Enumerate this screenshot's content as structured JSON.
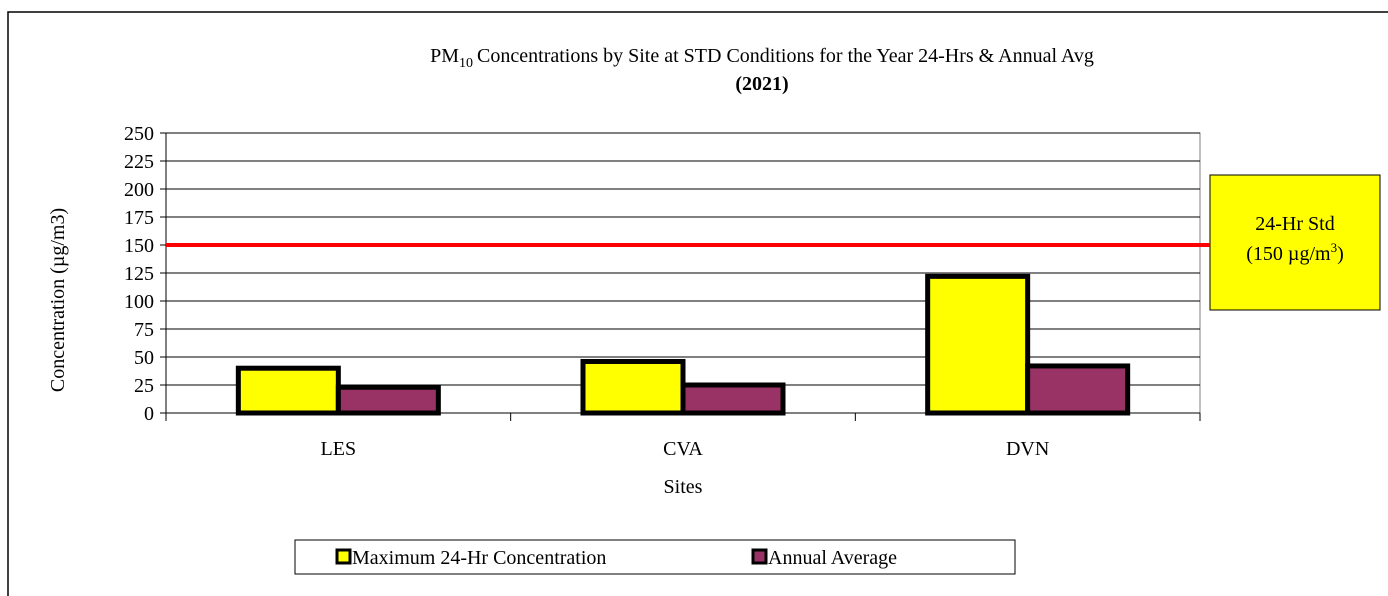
{
  "chart_data": {
    "type": "bar",
    "title_prefix": "PM",
    "title_subscript": "10",
    "title": "Concentrations by Site at STD Conditions for the Year 24-Hrs & Annual Avg",
    "subtitle": "(2021)",
    "x_label": "Sites",
    "y_label": "Concentration (µg/m3)",
    "categories": [
      "LES",
      "CVA",
      "DVN"
    ],
    "series": [
      {
        "name": "Maximum 24-Hr Concentration",
        "color": "#ffff00",
        "values": [
          40,
          46,
          122
        ]
      },
      {
        "name": "Annual Average",
        "color": "#993366",
        "values": [
          23,
          25,
          42
        ]
      }
    ],
    "ylim": [
      0,
      250
    ],
    "yticks": [
      0,
      25,
      50,
      75,
      100,
      125,
      150,
      175,
      200,
      225,
      250
    ],
    "grid": true,
    "reference_line": {
      "value": 150,
      "color": "#ff0000"
    },
    "annotation": {
      "line1": "24-Hr Std",
      "line2_prefix": "(150 µg/m",
      "line2_superscript": "3",
      "line2_suffix": ")",
      "color": "#ffff00"
    },
    "legend": "bottom"
  }
}
